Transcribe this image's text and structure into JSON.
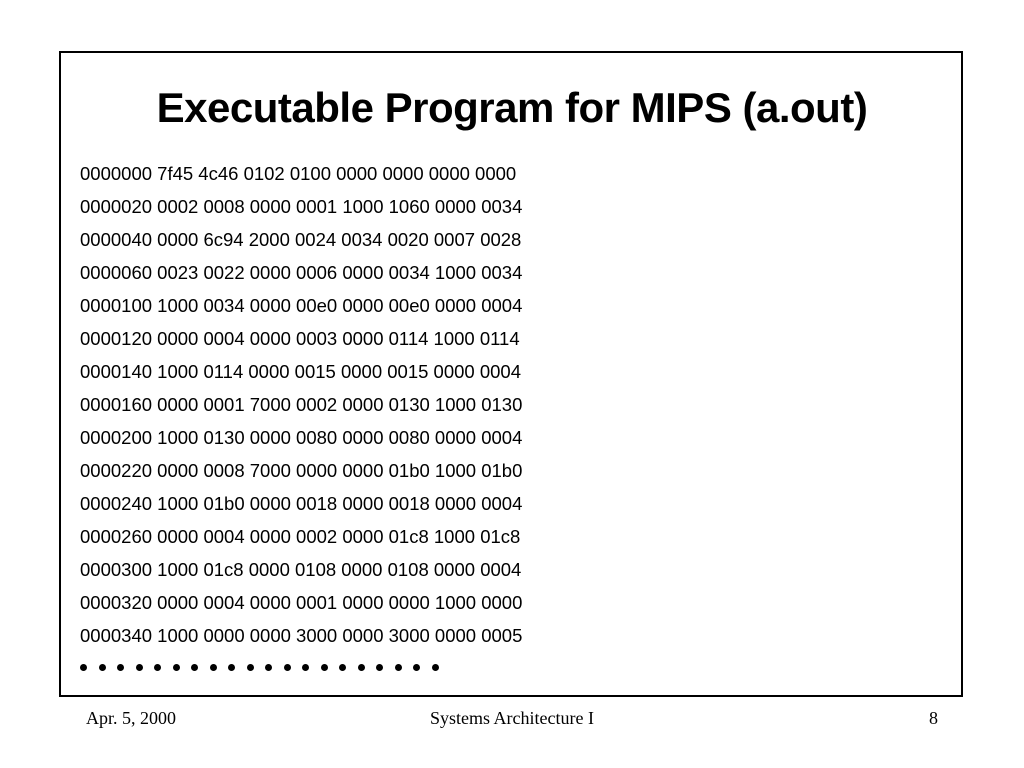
{
  "slide": {
    "title": "Executable Program for MIPS (a.out)",
    "dump_lines": [
      "0000000 7f45 4c46 0102 0100 0000 0000 0000 0000",
      "0000020 0002 0008 0000 0001 1000 1060 0000 0034",
      "0000040 0000 6c94 2000 0024 0034 0020 0007 0028",
      "0000060 0023 0022 0000 0006 0000 0034 1000 0034",
      "0000100 1000 0034 0000 00e0 0000 00e0 0000 0004",
      "0000120 0000 0004 0000 0003 0000 0114 1000 0114",
      "0000140 1000 0114 0000 0015 0000 0015 0000 0004",
      "0000160 0000 0001 7000 0002 0000 0130 1000 0130",
      "0000200 1000 0130 0000 0080 0000 0080 0000 0004",
      "0000220 0000 0008 7000 0000 0000 01b0 1000 01b0",
      "0000240 1000 01b0 0000 0018 0000 0018 0000 0004",
      "0000260 0000 0004 0000 0002 0000 01c8 1000 01c8",
      "0000300 1000 01c8 0000 0108 0000 0108 0000 0004",
      "0000320 0000 0004 0000 0001 0000 0000 1000 0000",
      "0000340 1000 0000 0000 3000 0000 3000 0000 0005"
    ],
    "continuation_dot_count": 20
  },
  "footer": {
    "date": "Apr. 5, 2000",
    "course": "Systems Architecture I",
    "page_number": "8"
  }
}
